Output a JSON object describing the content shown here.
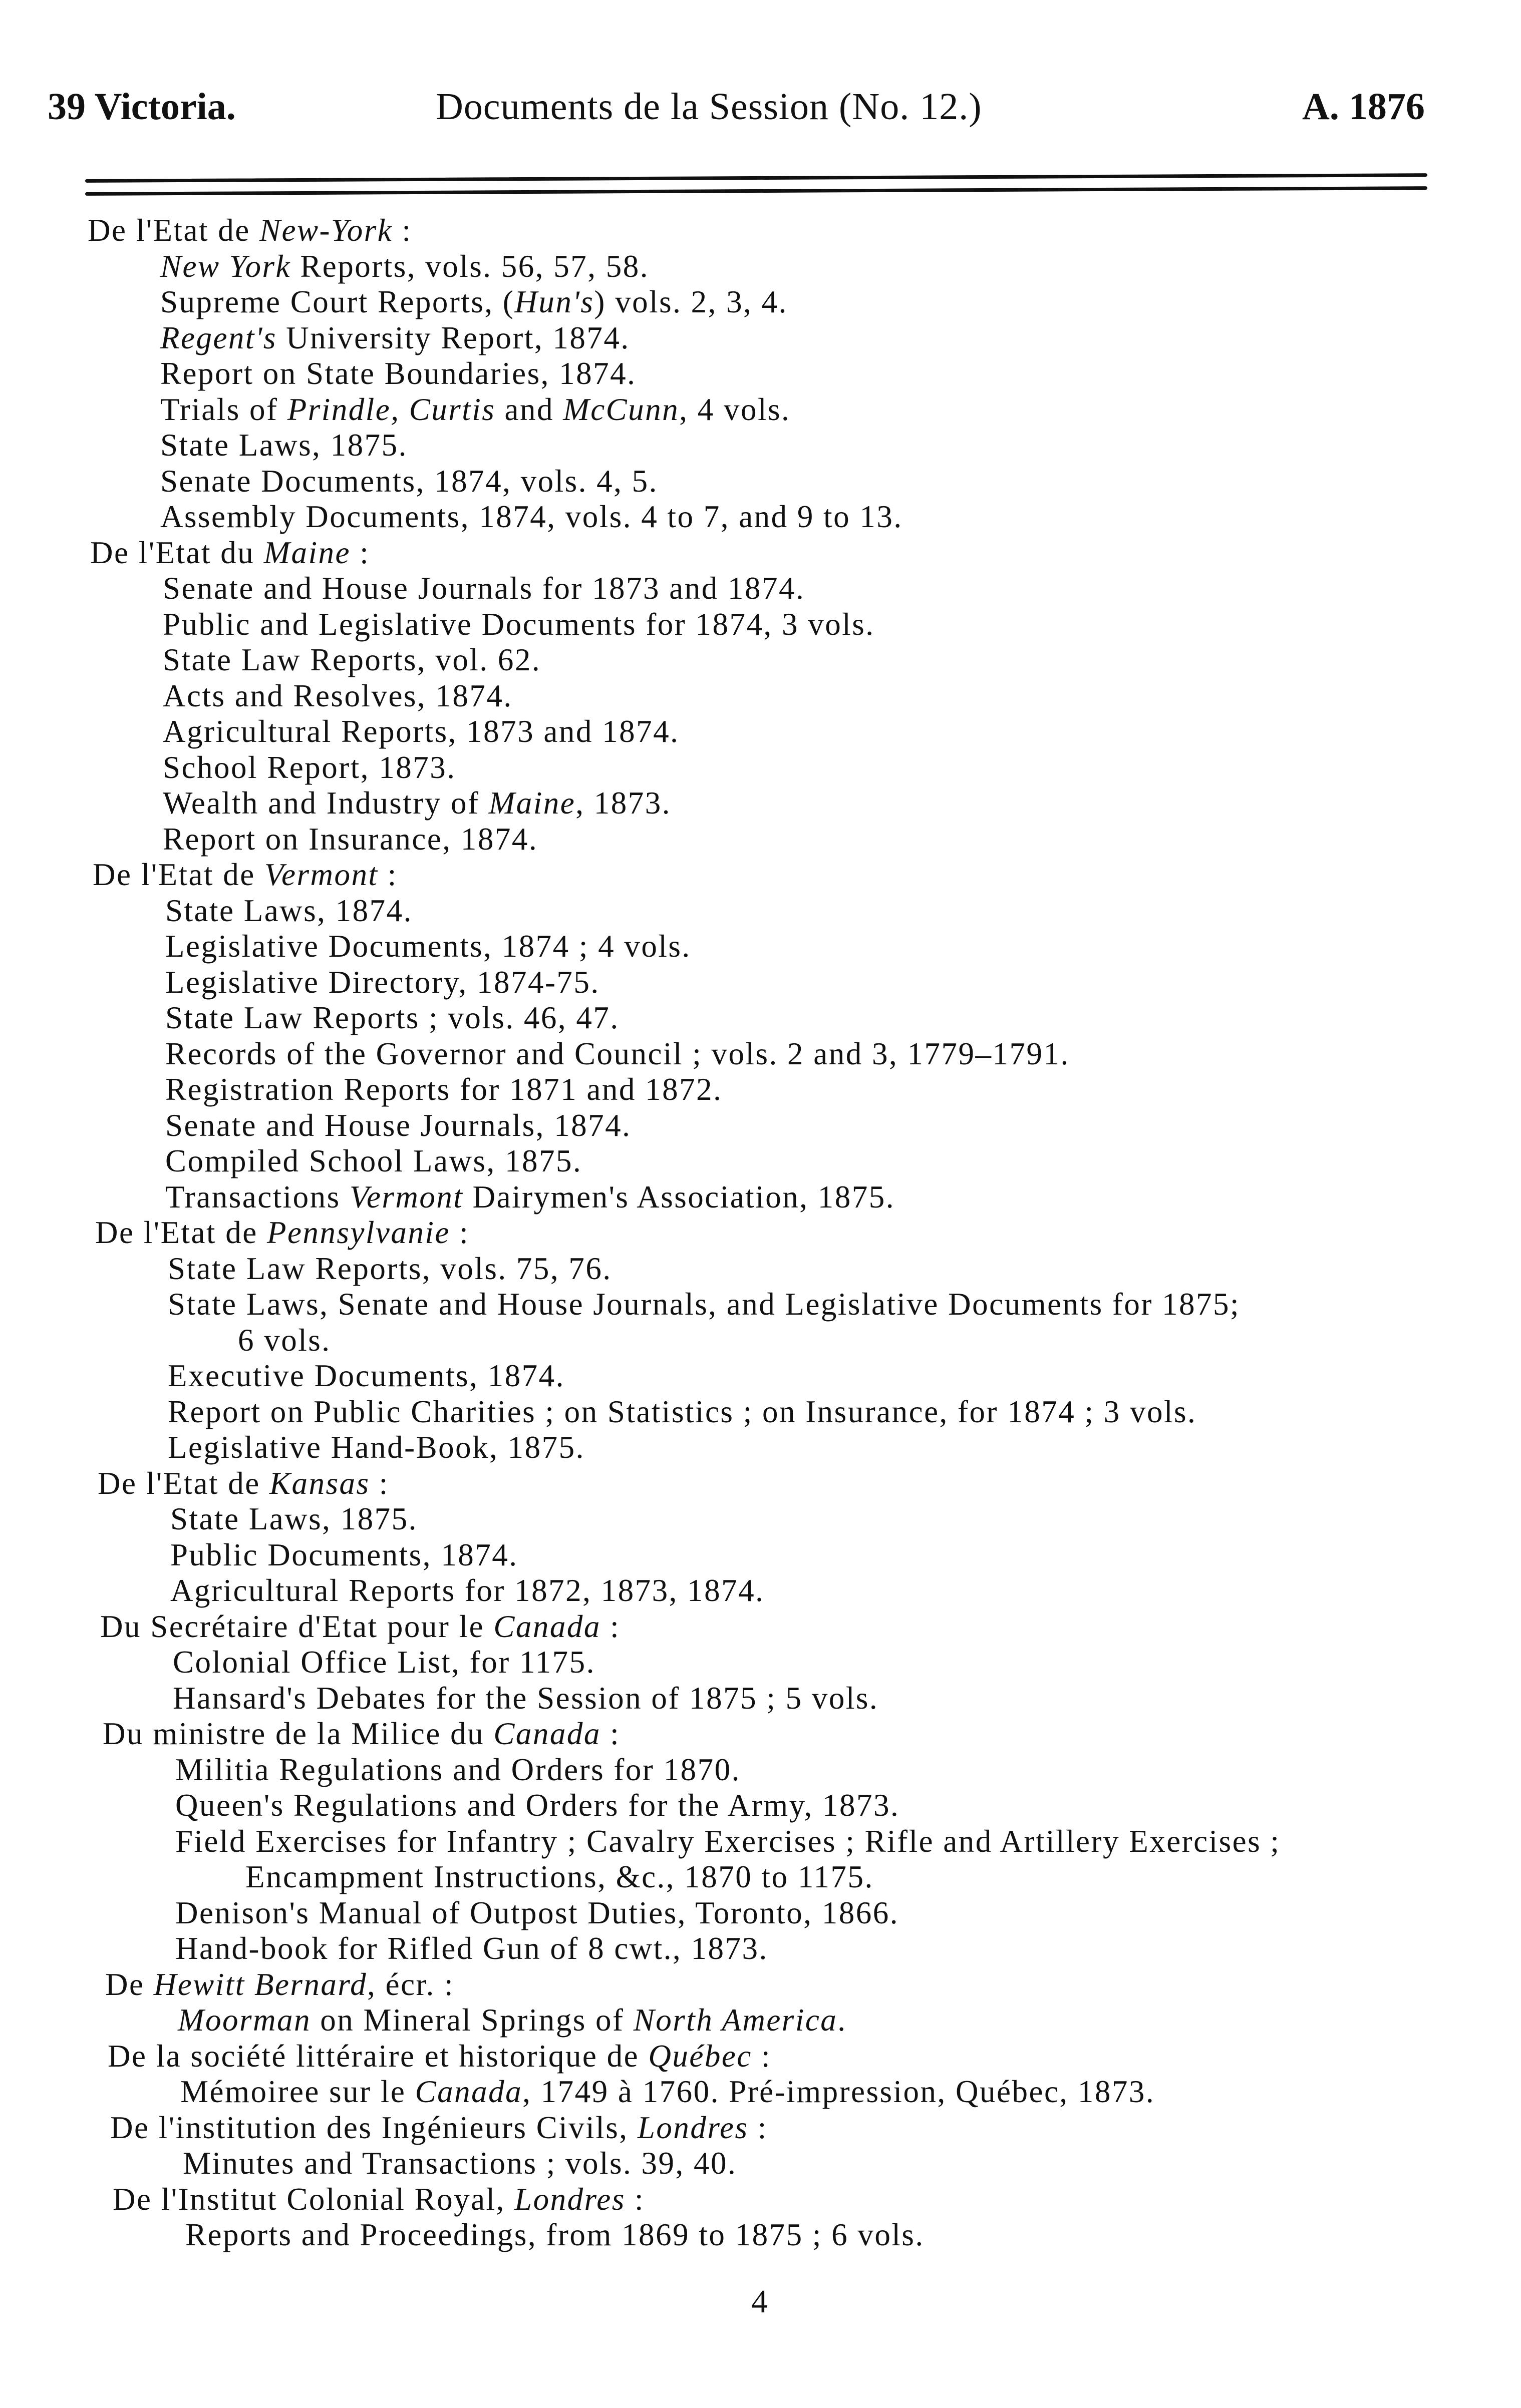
{
  "header": {
    "left": "39 Victoria.",
    "center": "Documents de la Session (No. 12.)",
    "right": "A. 1876"
  },
  "lines": [
    {
      "type": "h",
      "parts": [
        {
          "t": "De l'Etat de "
        },
        {
          "t": "New-York",
          "em": true
        },
        {
          "t": " :"
        }
      ]
    },
    {
      "type": "i",
      "parts": [
        {
          "t": "New York",
          "em": true
        },
        {
          "t": " Reports, vols. 56, 57, 58."
        }
      ]
    },
    {
      "type": "i",
      "parts": [
        {
          "t": "Supreme Court Reports, ("
        },
        {
          "t": "Hun's",
          "em": true
        },
        {
          "t": ") vols. 2, 3, 4."
        }
      ]
    },
    {
      "type": "i",
      "parts": [
        {
          "t": "Regent's",
          "em": true
        },
        {
          "t": " University Report, 1874."
        }
      ]
    },
    {
      "type": "i",
      "parts": [
        {
          "t": "Report on State Boundaries, 1874."
        }
      ]
    },
    {
      "type": "i",
      "parts": [
        {
          "t": "Trials of "
        },
        {
          "t": "Prindle, Curtis",
          "em": true
        },
        {
          "t": " and "
        },
        {
          "t": "McCunn",
          "em": true
        },
        {
          "t": ", 4 vols."
        }
      ]
    },
    {
      "type": "i",
      "parts": [
        {
          "t": "State Laws, 1875."
        }
      ]
    },
    {
      "type": "i",
      "parts": [
        {
          "t": "Senate Documents, 1874, vols. 4, 5."
        }
      ]
    },
    {
      "type": "i",
      "parts": [
        {
          "t": "Assembly Documents, 1874, vols. 4 to 7, and 9 to 13."
        }
      ]
    },
    {
      "type": "h",
      "parts": [
        {
          "t": "De l'Etat du "
        },
        {
          "t": "Maine",
          "em": true
        },
        {
          "t": " :"
        }
      ]
    },
    {
      "type": "i",
      "parts": [
        {
          "t": "Senate and House Journals for 1873 and 1874."
        }
      ]
    },
    {
      "type": "i",
      "parts": [
        {
          "t": "Public and Legislative Documents for 1874, 3 vols."
        }
      ]
    },
    {
      "type": "i",
      "parts": [
        {
          "t": "State Law Reports, vol. 62."
        }
      ]
    },
    {
      "type": "i",
      "parts": [
        {
          "t": "Acts and Resolves, 1874."
        }
      ]
    },
    {
      "type": "i",
      "parts": [
        {
          "t": "Agricultural Reports, 1873 and 1874."
        }
      ]
    },
    {
      "type": "i",
      "parts": [
        {
          "t": "School Report, 1873."
        }
      ]
    },
    {
      "type": "i",
      "parts": [
        {
          "t": "Wealth and Industry of "
        },
        {
          "t": "Maine",
          "em": true
        },
        {
          "t": ", 1873."
        }
      ]
    },
    {
      "type": "i",
      "parts": [
        {
          "t": "Report on Insurance, 1874."
        }
      ]
    },
    {
      "type": "h",
      "parts": [
        {
          "t": "De l'Etat de "
        },
        {
          "t": "Vermont",
          "em": true
        },
        {
          "t": " :"
        }
      ]
    },
    {
      "type": "i",
      "parts": [
        {
          "t": "State Laws, 1874."
        }
      ]
    },
    {
      "type": "i",
      "parts": [
        {
          "t": "Legislative Documents, 1874 ; 4 vols."
        }
      ]
    },
    {
      "type": "i",
      "parts": [
        {
          "t": "Legislative Directory, 1874-75."
        }
      ]
    },
    {
      "type": "i",
      "parts": [
        {
          "t": "State Law Reports ; vols. 46, 47."
        }
      ]
    },
    {
      "type": "i",
      "parts": [
        {
          "t": "Records of the Governor and Council ; vols. 2 and 3, 1779–1791."
        }
      ]
    },
    {
      "type": "i",
      "parts": [
        {
          "t": "Registration Reports for 1871 and 1872."
        }
      ]
    },
    {
      "type": "i",
      "parts": [
        {
          "t": "Senate and House Journals, 1874."
        }
      ]
    },
    {
      "type": "i",
      "parts": [
        {
          "t": "Compiled School Laws, 1875."
        }
      ]
    },
    {
      "type": "i",
      "parts": [
        {
          "t": "Transactions "
        },
        {
          "t": "Vermont",
          "em": true
        },
        {
          "t": " Dairymen's Association, 1875."
        }
      ]
    },
    {
      "type": "h",
      "parts": [
        {
          "t": "De l'Etat de "
        },
        {
          "t": "Pennsylvanie",
          "em": true
        },
        {
          "t": " :"
        }
      ]
    },
    {
      "type": "i",
      "parts": [
        {
          "t": "State Law Reports, vols. 75, 76."
        }
      ]
    },
    {
      "type": "i",
      "parts": [
        {
          "t": "State Laws, Senate and House Journals, and Legislative Documents for 1875;"
        }
      ]
    },
    {
      "type": "c",
      "parts": [
        {
          "t": "6 vols."
        }
      ]
    },
    {
      "type": "i",
      "parts": [
        {
          "t": "Executive Documents, 1874."
        }
      ]
    },
    {
      "type": "i",
      "parts": [
        {
          "t": "Report on Public Charities ; on Statistics ; on Insurance, for 1874 ; 3 vols."
        }
      ]
    },
    {
      "type": "i",
      "parts": [
        {
          "t": "Legislative Hand-Book, 1875."
        }
      ]
    },
    {
      "type": "h",
      "parts": [
        {
          "t": "De l'Etat de "
        },
        {
          "t": "Kansas",
          "em": true
        },
        {
          "t": " :"
        }
      ]
    },
    {
      "type": "i",
      "parts": [
        {
          "t": "State Laws, 1875."
        }
      ]
    },
    {
      "type": "i",
      "parts": [
        {
          "t": "Public Documents, 1874."
        }
      ]
    },
    {
      "type": "i",
      "parts": [
        {
          "t": "Agricultural Reports for 1872, 1873, 1874."
        }
      ]
    },
    {
      "type": "h",
      "parts": [
        {
          "t": "Du Secrétaire d'Etat pour le "
        },
        {
          "t": "Canada",
          "em": true
        },
        {
          "t": " :"
        }
      ]
    },
    {
      "type": "i",
      "parts": [
        {
          "t": "Colonial Office List, for 1175."
        }
      ]
    },
    {
      "type": "i",
      "parts": [
        {
          "t": "Hansard's Debates for the Session of 1875 ; 5 vols."
        }
      ]
    },
    {
      "type": "h",
      "parts": [
        {
          "t": "Du ministre de la Milice du "
        },
        {
          "t": "Canada",
          "em": true
        },
        {
          "t": " :"
        }
      ]
    },
    {
      "type": "i",
      "parts": [
        {
          "t": "Militia Regulations and Orders for 1870."
        }
      ]
    },
    {
      "type": "i",
      "parts": [
        {
          "t": "Queen's Regulations and Orders for the Army, 1873."
        }
      ]
    },
    {
      "type": "i",
      "parts": [
        {
          "t": "Field Exercises for Infantry ; Cavalry Exercises ; Rifle and Artillery Exercises ;"
        }
      ]
    },
    {
      "type": "c",
      "parts": [
        {
          "t": "Encampment Instructions, &c., 1870 to 1175."
        }
      ]
    },
    {
      "type": "i",
      "parts": [
        {
          "t": "Denison's Manual of Outpost Duties, Toronto, 1866."
        }
      ]
    },
    {
      "type": "i",
      "parts": [
        {
          "t": "Hand-book for Rifled Gun of 8 cwt., 1873."
        }
      ]
    },
    {
      "type": "h",
      "parts": [
        {
          "t": "De "
        },
        {
          "t": "Hewitt Bernard",
          "em": true
        },
        {
          "t": ", écr. :"
        }
      ]
    },
    {
      "type": "i",
      "parts": [
        {
          "t": "Moorman",
          "em": true
        },
        {
          "t": " on Mineral Springs of "
        },
        {
          "t": "North America",
          "em": true
        },
        {
          "t": "."
        }
      ]
    },
    {
      "type": "h",
      "parts": [
        {
          "t": "De la société littéraire et historique de "
        },
        {
          "t": "Québec",
          "em": true
        },
        {
          "t": " :"
        }
      ]
    },
    {
      "type": "i",
      "parts": [
        {
          "t": "Mémoiree sur le "
        },
        {
          "t": "Canada",
          "em": true
        },
        {
          "t": ", 1749 à 1760.  Pré-impression, Québec, 1873."
        }
      ]
    },
    {
      "type": "h",
      "parts": [
        {
          "t": "De l'institution des Ingénieurs Civils, "
        },
        {
          "t": "Londres",
          "em": true
        },
        {
          "t": " :"
        }
      ]
    },
    {
      "type": "i",
      "parts": [
        {
          "t": "Minutes and Transactions ; vols. 39, 40."
        }
      ]
    },
    {
      "type": "h",
      "parts": [
        {
          "t": "De l'Institut Colonial Royal, "
        },
        {
          "t": "Londres",
          "em": true
        },
        {
          "t": " :"
        }
      ]
    },
    {
      "type": "i",
      "parts": [
        {
          "t": "Reports and Proceedings, from 1869 to 1875 ; 6 vols."
        }
      ]
    }
  ],
  "page_number": "4"
}
